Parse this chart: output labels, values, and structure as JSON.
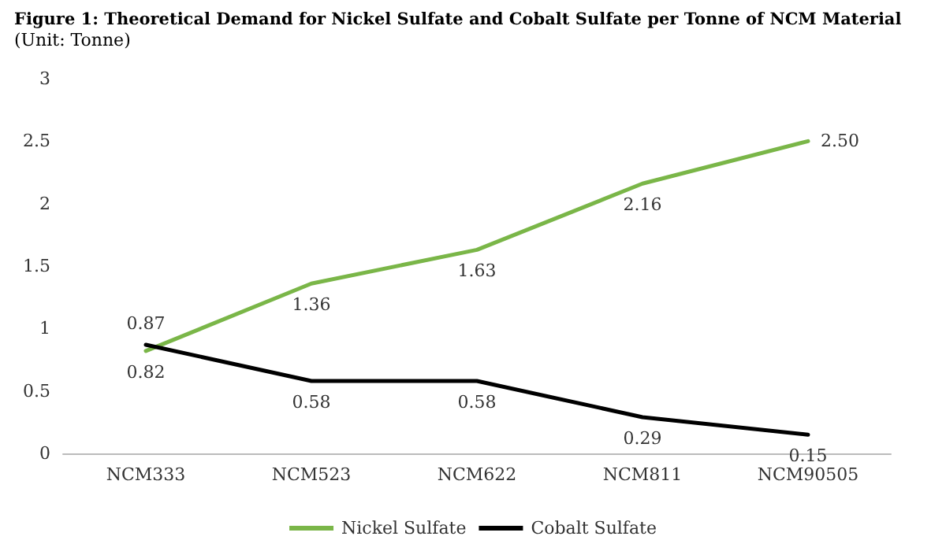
{
  "chart_data": {
    "type": "line",
    "title": "Figure 1: Theoretical Demand for Nickel Sulfate and Cobalt Sulfate per Tonne of NCM Material",
    "subtitle": "(Unit: Tonne)",
    "categories": [
      "NCM333",
      "NCM523",
      "NCM622",
      "NCM811",
      "NCM90505"
    ],
    "series": [
      {
        "name": "Nickel Sulfate",
        "color": "#7ab648",
        "values": [
          0.82,
          1.36,
          1.63,
          2.16,
          2.5
        ],
        "value_labels": [
          "0.82",
          "1.36",
          "1.63",
          "2.16",
          "2.50"
        ]
      },
      {
        "name": "Cobalt Sulfate",
        "color": "#000000",
        "values": [
          0.87,
          0.58,
          0.58,
          0.29,
          0.15
        ],
        "value_labels": [
          "0.87",
          "0.58",
          "0.58",
          "0.29",
          "0.15"
        ]
      }
    ],
    "ylim": [
      0,
      3
    ],
    "yticks": [
      0,
      0.5,
      1,
      1.5,
      2,
      2.5,
      3
    ],
    "grid": false,
    "legend": "bottom",
    "marker": "none",
    "line_style": "solid"
  }
}
